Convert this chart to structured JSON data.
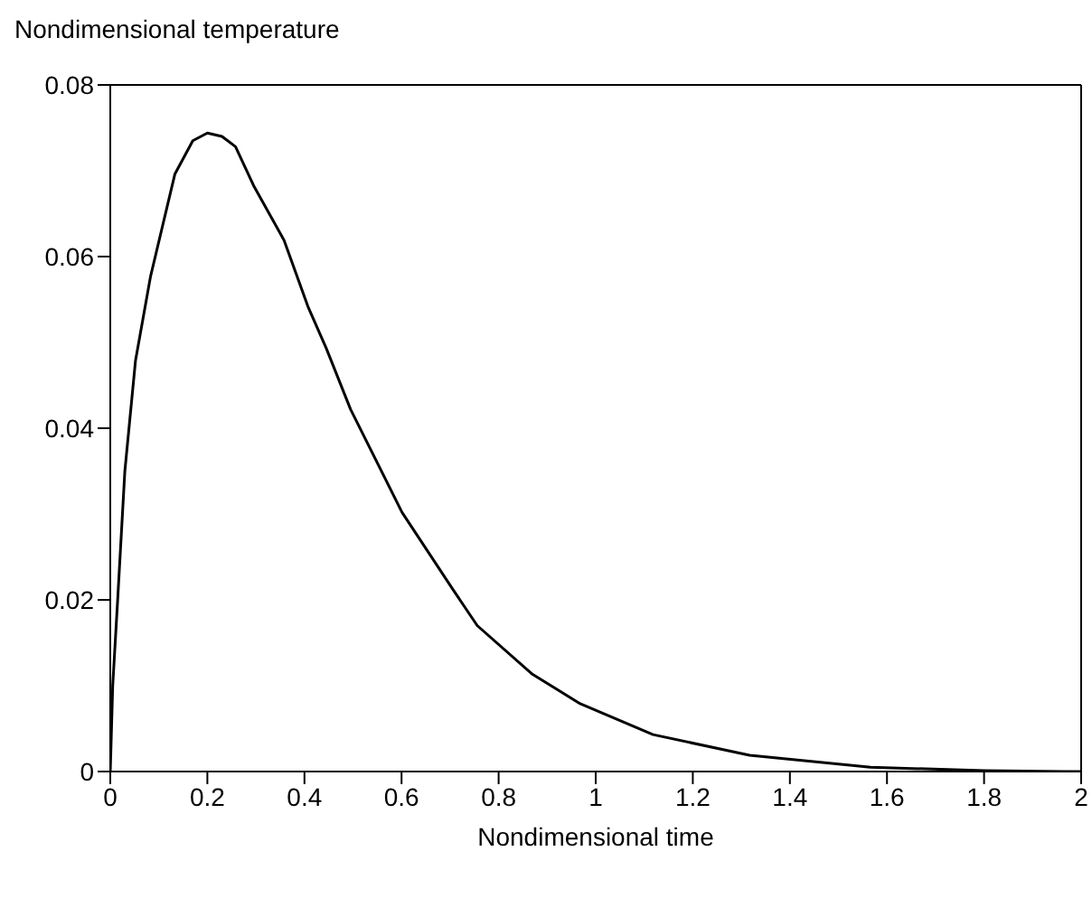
{
  "chart_data": {
    "type": "line",
    "xlabel": "Nondimensional time",
    "ylabel": "Nondimensional temperature",
    "x": [
      0,
      0.005,
      0.015,
      0.03,
      0.052,
      0.083,
      0.133,
      0.17,
      0.2,
      0.23,
      0.258,
      0.295,
      0.358,
      0.407,
      0.445,
      0.495,
      0.601,
      0.706,
      0.756,
      0.868,
      0.968,
      1.118,
      1.317,
      1.566,
      1.8,
      1.965,
      2
    ],
    "series": [
      {
        "color": "#000000",
        "values": [
          0,
          0.01,
          0.0198,
          0.035,
          0.0479,
          0.0577,
          0.0696,
          0.0735,
          0.0744,
          0.074,
          0.0728,
          0.0683,
          0.0619,
          0.0542,
          0.0493,
          0.0422,
          0.0302,
          0.0212,
          0.017,
          0.0114,
          0.0079,
          0.0043,
          0.0019,
          0.0005,
          0.0001,
          0,
          0
        ]
      }
    ],
    "xlim": [
      0,
      2
    ],
    "xticks": [
      0,
      0.2,
      0.4,
      0.6,
      0.8,
      1,
      1.2,
      1.4,
      1.6,
      1.8,
      2
    ],
    "ylim": [
      0,
      0.08
    ],
    "yticks": [
      0,
      0.02,
      0.04,
      0.06,
      0.08
    ],
    "grid": false,
    "legend": false,
    "marker": "none",
    "line_style": "solid"
  }
}
